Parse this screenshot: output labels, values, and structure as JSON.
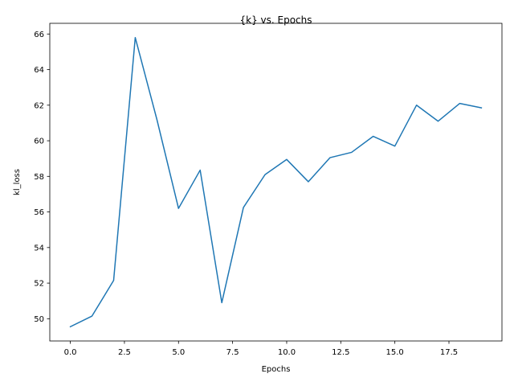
{
  "chart_data": {
    "type": "line",
    "title": "{k} vs. Epochs",
    "xlabel": "Epochs",
    "ylabel": "kl_loss",
    "xlim": [
      -0.95,
      19.95
    ],
    "ylim": [
      48.75,
      66.6
    ],
    "x_ticks": [
      0.0,
      2.5,
      5.0,
      7.5,
      10.0,
      12.5,
      15.0,
      17.5
    ],
    "x_tick_labels": [
      "0.0",
      "2.5",
      "5.0",
      "7.5",
      "10.0",
      "12.5",
      "15.0",
      "17.5"
    ],
    "y_ticks": [
      50,
      52,
      54,
      56,
      58,
      60,
      62,
      64,
      66
    ],
    "y_tick_labels": [
      "50",
      "52",
      "54",
      "56",
      "58",
      "60",
      "62",
      "64",
      "66"
    ],
    "grid": false,
    "legend": "none",
    "series": [
      {
        "color": "#1f77b4",
        "x": [
          0,
          1,
          2,
          3,
          4,
          5,
          6,
          7,
          8,
          9,
          10,
          11,
          12,
          13,
          14,
          15,
          16,
          17,
          18,
          19
        ],
        "values": [
          49.55,
          50.15,
          52.15,
          65.8,
          61.2,
          56.2,
          58.35,
          50.9,
          56.25,
          58.1,
          58.95,
          57.7,
          59.05,
          59.35,
          60.25,
          59.7,
          62.0,
          61.1,
          62.1,
          61.85
        ]
      }
    ]
  }
}
